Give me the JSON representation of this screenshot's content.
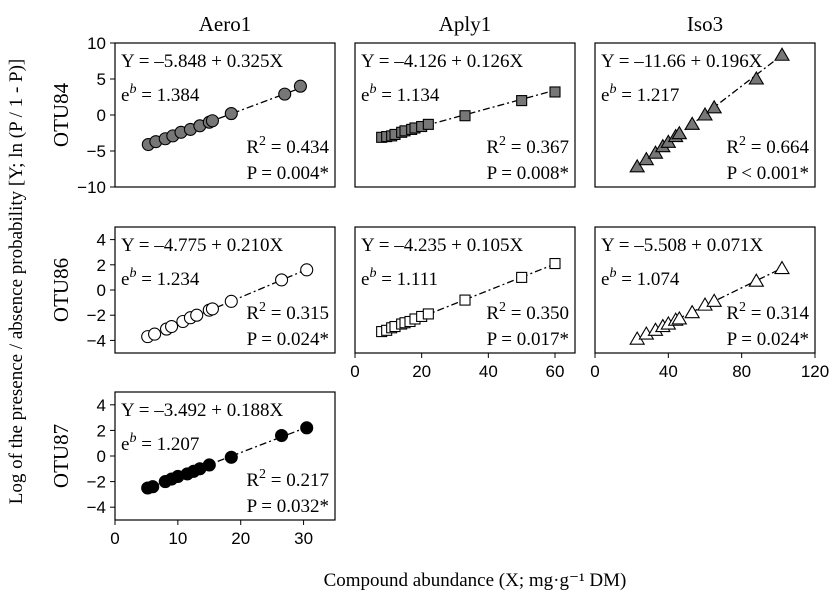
{
  "chart_data": {
    "type": "scatter",
    "y_axis_title": "Log of the presence / absence probability [Y; ln (P / 1 - P)]",
    "x_axis_title": "Compound abundance (X; mg·g⁻¹ DM)",
    "columns": [
      {
        "name": "Aero1",
        "x_ticks": [
          0,
          10,
          20,
          30
        ],
        "xlim": [
          0,
          35
        ]
      },
      {
        "name": "Aply1",
        "x_ticks": [
          0,
          20,
          40,
          60
        ],
        "xlim": [
          0,
          66
        ]
      },
      {
        "name": "Iso3",
        "x_ticks": [
          0,
          40,
          80,
          120
        ],
        "xlim": [
          0,
          120
        ]
      }
    ],
    "rows": [
      {
        "name": "OTU84",
        "y_ticks": [
          10,
          5,
          0,
          -5,
          -10
        ],
        "ylim": [
          -10,
          10
        ]
      },
      {
        "name": "OTU86",
        "y_ticks": [
          4,
          2,
          0,
          -2,
          -4
        ],
        "ylim": [
          -5,
          5
        ]
      },
      {
        "name": "OTU87",
        "y_ticks": [
          4,
          2,
          0,
          -2,
          -4
        ],
        "ylim": [
          -5,
          5
        ]
      }
    ],
    "panels": [
      {
        "row": 0,
        "col": 0,
        "marker": "circle",
        "fill": "#777777",
        "equation": "Y = –5.848 + 0.325X",
        "eb_value": "1.384",
        "r2_value": "0.434",
        "p_text": "P = 0.004*",
        "intercept": -5.848,
        "slope": 0.325,
        "x": [
          5.3,
          6.5,
          8,
          9.2,
          10.5,
          12,
          13.5,
          15,
          15.5,
          18.5,
          27,
          29.5
        ],
        "y": [
          -4.1,
          -3.7,
          -3.3,
          -2.9,
          -2.4,
          -2.0,
          -1.5,
          -1.0,
          -0.8,
          0.2,
          2.9,
          4.0
        ]
      },
      {
        "row": 0,
        "col": 1,
        "marker": "square",
        "fill": "#777777",
        "equation": "Y = –4.126 + 0.126X",
        "eb_value": "1.134",
        "r2_value": "0.367",
        "p_text": "P = 0.008*",
        "intercept": -4.126,
        "slope": 0.126,
        "x": [
          8,
          9.5,
          11,
          12,
          14,
          15,
          17,
          18,
          20,
          22,
          33,
          50,
          60
        ],
        "y": [
          -3.1,
          -3.0,
          -2.9,
          -2.7,
          -2.4,
          -2.2,
          -2.0,
          -1.8,
          -1.6,
          -1.3,
          -0.1,
          2.0,
          3.2
        ]
      },
      {
        "row": 0,
        "col": 2,
        "marker": "triangle",
        "fill": "#777777",
        "equation": "Y = –11.66 + 0.196X",
        "eb_value": "1.217",
        "r2_value": "0.664",
        "p_text": "P < 0.001*",
        "intercept": -11.66,
        "slope": 0.196,
        "x": [
          23,
          28,
          33,
          37,
          40,
          44,
          46,
          53,
          60,
          65,
          88,
          102
        ],
        "y": [
          -7.2,
          -6.2,
          -5.3,
          -4.4,
          -3.8,
          -3.0,
          -2.6,
          -1.3,
          0.0,
          1.0,
          5.0,
          8.3
        ]
      },
      {
        "row": 1,
        "col": 0,
        "marker": "circle",
        "fill": "#ffffff",
        "equation": "Y = –4.775 + 0.210X",
        "eb_value": "1.234",
        "r2_value": "0.315",
        "p_text": "P = 0.024*",
        "intercept": -4.775,
        "slope": 0.21,
        "x": [
          5.2,
          6.3,
          8.2,
          9,
          10.8,
          12,
          13,
          15,
          15.5,
          18.5,
          26.5,
          30.5
        ],
        "y": [
          -3.7,
          -3.5,
          -3.1,
          -2.9,
          -2.5,
          -2.2,
          -2.0,
          -1.6,
          -1.5,
          -0.9,
          0.8,
          1.6
        ]
      },
      {
        "row": 1,
        "col": 1,
        "marker": "square",
        "fill": "#ffffff",
        "equation": "Y = –4.235 + 0.105X",
        "eb_value": "1.111",
        "r2_value": "0.350",
        "p_text": "P = 0.017*",
        "intercept": -4.235,
        "slope": 0.105,
        "x": [
          8,
          9.5,
          11,
          12,
          14,
          15,
          16.5,
          18,
          20,
          22,
          33,
          50,
          60
        ],
        "y": [
          -3.3,
          -3.2,
          -3.0,
          -2.9,
          -2.7,
          -2.6,
          -2.5,
          -2.3,
          -2.1,
          -1.9,
          -0.8,
          1.0,
          2.1
        ]
      },
      {
        "row": 1,
        "col": 2,
        "marker": "triangle",
        "fill": "#ffffff",
        "equation": "Y = –5.508 + 0.071X",
        "eb_value": "1.074",
        "r2_value": "0.314",
        "p_text": "P = 0.024*",
        "intercept": -5.508,
        "slope": 0.071,
        "x": [
          23,
          28,
          33,
          37,
          40,
          44,
          46,
          53,
          60,
          65,
          88,
          102
        ],
        "y": [
          -3.9,
          -3.5,
          -3.2,
          -2.9,
          -2.7,
          -2.4,
          -2.3,
          -1.8,
          -1.2,
          -0.9,
          0.7,
          1.7
        ]
      },
      {
        "row": 2,
        "col": 0,
        "marker": "circle",
        "fill": "#000000",
        "equation": "Y = –3.492 + 0.188X",
        "eb_value": "1.207",
        "r2_value": "0.217",
        "p_text": "P = 0.032*",
        "intercept": -3.492,
        "slope": 0.188,
        "x": [
          5.2,
          6,
          8,
          9,
          10,
          11.5,
          12.5,
          13.5,
          15,
          18.5,
          26.5,
          30.5
        ],
        "y": [
          -2.5,
          -2.4,
          -2.0,
          -1.8,
          -1.6,
          -1.4,
          -1.2,
          -1.0,
          -0.7,
          -0.1,
          1.6,
          2.2
        ]
      }
    ]
  }
}
